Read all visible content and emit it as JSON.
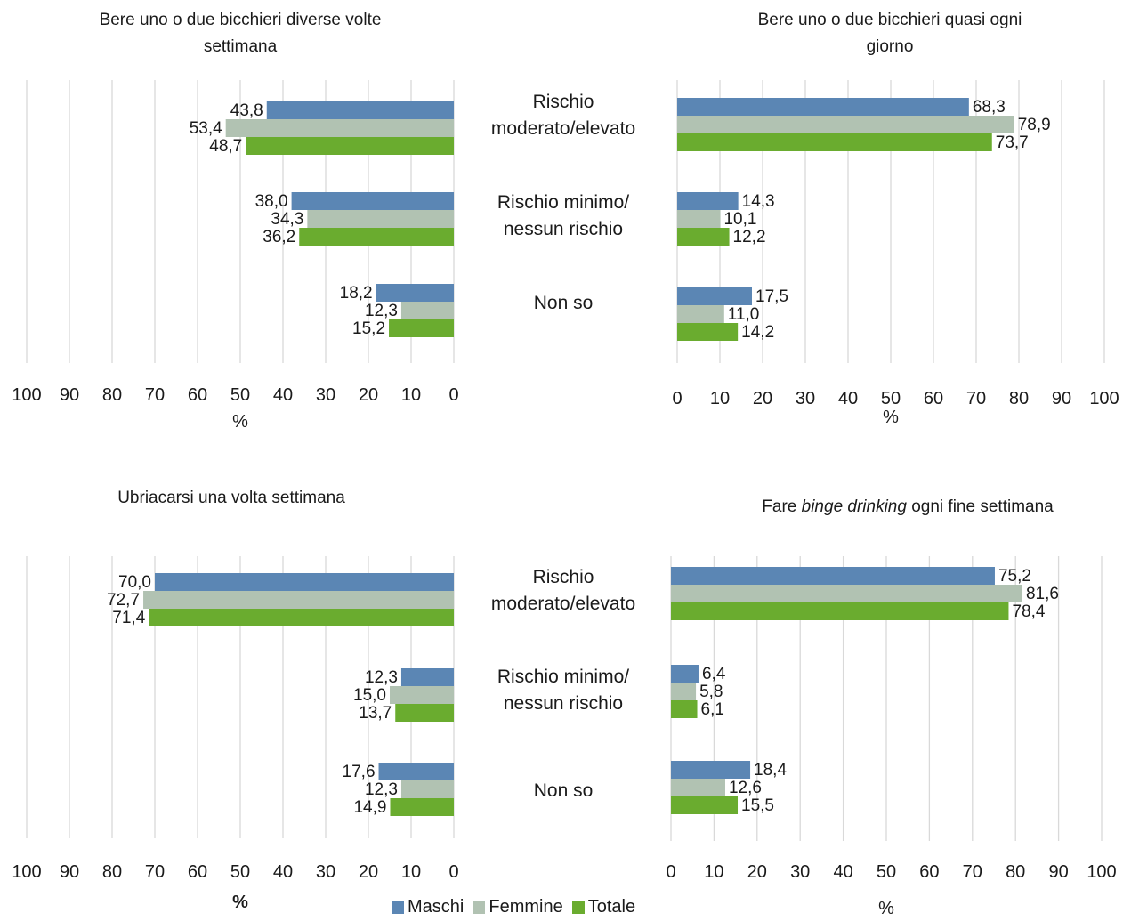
{
  "colors": {
    "maschi": "#5b86b4",
    "femmine": "#b1c2b2",
    "totale": "#6aac2f",
    "grid": "#d9d9d9"
  },
  "categories": [
    "Rischio moderato/elevato",
    "Rischio minimo/ nessun rischio",
    "Non so"
  ],
  "category_labels": {
    "c1a": "Rischio",
    "c1b": "moderato/elevato",
    "c2a": "Rischio minimo/",
    "c2b": "nessun rischio",
    "c3": "Non so"
  },
  "legend": {
    "maschi": "Maschi",
    "femmine": "Femmine",
    "totale": "Totale"
  },
  "chart_data": [
    {
      "type": "bar",
      "title": "Bere uno o due bicchieri diverse volte settimana",
      "title_lines": [
        "Bere uno o due bicchieri diverse volte",
        "settimana"
      ],
      "orientation": "reversed",
      "xlabel": "%",
      "xlim": [
        0,
        100
      ],
      "ticks": [
        "100",
        "90",
        "80",
        "70",
        "60",
        "50",
        "40",
        "30",
        "20",
        "10",
        "0"
      ],
      "series": [
        {
          "name": "Maschi",
          "values": [
            43.8,
            38.0,
            18.2
          ],
          "labels": [
            "43,8",
            "38,0",
            "18,2"
          ]
        },
        {
          "name": "Femmine",
          "values": [
            53.4,
            34.3,
            12.3
          ],
          "labels": [
            "53,4",
            "34,3",
            "12,3"
          ]
        },
        {
          "name": "Totale",
          "values": [
            48.7,
            36.2,
            15.2
          ],
          "labels": [
            "48,7",
            "36,2",
            "15,2"
          ]
        }
      ]
    },
    {
      "type": "bar",
      "title": "Bere uno o due bicchieri quasi ogni giorno",
      "title_lines": [
        "Bere uno o due bicchieri quasi ogni",
        "giorno"
      ],
      "orientation": "normal",
      "xlabel": "%",
      "xlim": [
        0,
        100
      ],
      "ticks": [
        "0",
        "10",
        "20",
        "30",
        "40",
        "50",
        "60",
        "70",
        "80",
        "90",
        "100"
      ],
      "series": [
        {
          "name": "Maschi",
          "values": [
            68.3,
            14.3,
            17.5
          ],
          "labels": [
            "68,3",
            "14,3",
            "17,5"
          ]
        },
        {
          "name": "Femmine",
          "values": [
            78.9,
            10.1,
            11.0
          ],
          "labels": [
            "78,9",
            "10,1",
            "11,0"
          ]
        },
        {
          "name": "Totale",
          "values": [
            73.7,
            12.2,
            14.2
          ],
          "labels": [
            "73,7",
            "12,2",
            "14,2"
          ]
        }
      ]
    },
    {
      "type": "bar",
      "title": "Ubriacarsi una volta settimana",
      "title_lines": [
        "Ubriacarsi una volta settimana"
      ],
      "orientation": "reversed",
      "xlabel": "%",
      "xlim": [
        0,
        100
      ],
      "ticks": [
        "100",
        "90",
        "80",
        "70",
        "60",
        "50",
        "40",
        "30",
        "20",
        "10",
        "0"
      ],
      "series": [
        {
          "name": "Maschi",
          "values": [
            70.0,
            12.3,
            17.6
          ],
          "labels": [
            "70,0",
            "12,3",
            "17,6"
          ]
        },
        {
          "name": "Femmine",
          "values": [
            72.7,
            15.0,
            12.3
          ],
          "labels": [
            "72,7",
            "15,0",
            "12,3"
          ]
        },
        {
          "name": "Totale",
          "values": [
            71.4,
            13.7,
            14.9
          ],
          "labels": [
            "71,4",
            "13,7",
            "14,9"
          ]
        }
      ]
    },
    {
      "type": "bar",
      "title": "Fare binge drinking ogni fine settimana",
      "title_parts": {
        "pre": "Fare ",
        "em": "binge drinking",
        "post": " ogni fine settimana"
      },
      "orientation": "normal",
      "xlabel": "%",
      "xlim": [
        0,
        100
      ],
      "ticks": [
        "0",
        "10",
        "20",
        "30",
        "40",
        "50",
        "60",
        "70",
        "80",
        "90",
        "100"
      ],
      "series": [
        {
          "name": "Maschi",
          "values": [
            75.2,
            6.4,
            18.4
          ],
          "labels": [
            "75,2",
            "6,4",
            "18,4"
          ]
        },
        {
          "name": "Femmine",
          "values": [
            81.6,
            5.8,
            12.6
          ],
          "labels": [
            "81,6",
            "5,8",
            "12,6"
          ]
        },
        {
          "name": "Totale",
          "values": [
            78.4,
            6.1,
            15.5
          ],
          "labels": [
            "78,4",
            "6,1",
            "15,5"
          ]
        }
      ]
    }
  ]
}
